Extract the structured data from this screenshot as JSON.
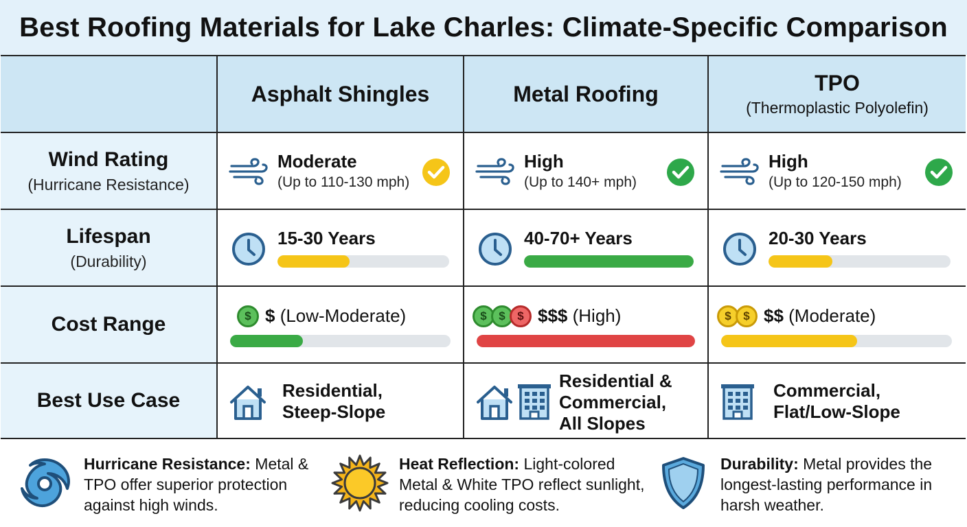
{
  "title": "Best Roofing Materials for Lake Charles: Climate-Specific Comparison",
  "columns": [
    {
      "name": "Asphalt Shingles",
      "subtitle": ""
    },
    {
      "name": "Metal Roofing",
      "subtitle": ""
    },
    {
      "name": "TPO",
      "subtitle": "(Thermoplastic Polyolefin)"
    }
  ],
  "rows": {
    "wind": {
      "label": "Wind Rating",
      "sublabel": "(Hurricane Resistance)",
      "cells": [
        {
          "rating": "Moderate",
          "detail": "(Up to 110-130 mph)",
          "check_color": "#f5c518"
        },
        {
          "rating": "High",
          "detail": "(Up to 140+ mph)",
          "check_color": "#2ea84a"
        },
        {
          "rating": "High",
          "detail": "(Up to 120-150 mph)",
          "check_color": "#2ea84a"
        }
      ]
    },
    "lifespan": {
      "label": "Lifespan",
      "sublabel": "(Durability)",
      "cells": [
        {
          "value": "15-30 Years",
          "bar_fraction": 0.42,
          "bar_color": "#f5c518"
        },
        {
          "value": "40-70+ Years",
          "bar_fraction": 1.0,
          "bar_color": "#3aaa45"
        },
        {
          "value": "20-30 Years",
          "bar_fraction": 0.35,
          "bar_color": "#f5c518"
        }
      ]
    },
    "cost": {
      "label": "Cost Range",
      "cells": [
        {
          "symbol": "$",
          "desc": "(Low-Moderate)",
          "coins": [
            "$"
          ],
          "bar_fraction": 0.33,
          "bar_color": "#3aaa45"
        },
        {
          "symbol": "$$$",
          "desc": "(High)",
          "coins": [
            "$",
            "$",
            "$"
          ],
          "bar_fraction": 1.0,
          "bar_color": "#e04444"
        },
        {
          "symbol": "$$",
          "desc": "(Moderate)",
          "coins": [
            "$",
            "$"
          ],
          "bar_fraction": 0.59,
          "bar_color": "#f5c518"
        }
      ]
    },
    "usecase": {
      "label": "Best Use Case",
      "cells": [
        {
          "lines": [
            "Residential,",
            "Steep-Slope"
          ],
          "icons": [
            "house-icon"
          ]
        },
        {
          "lines": [
            "Residential &",
            "Commercial,",
            "All Slopes"
          ],
          "icons": [
            "house-icon",
            "building-icon"
          ]
        },
        {
          "lines": [
            "Commercial,",
            "Flat/Low-Slope"
          ],
          "icons": [
            "building-icon"
          ]
        }
      ]
    }
  },
  "colors": {
    "header_bg": "#cde6f4",
    "label_bg": "#e6f3fb",
    "title_bg": "#e3f1fa",
    "icon_blue": "#2a5f8f",
    "icon_fill": "#bfe0f5"
  },
  "footer": [
    {
      "icon": "hurricane-icon",
      "heading": "Hurricane Resistance:",
      "text": " Metal & TPO offer superior protection against high winds."
    },
    {
      "icon": "sun-icon",
      "heading": "Heat Reflection:",
      "text": " Light-colored Metal & White TPO reflect sunlight, reducing cooling costs."
    },
    {
      "icon": "shield-icon",
      "heading": "Durability:",
      "text": " Metal provides the longest-lasting performance in harsh weather."
    }
  ]
}
